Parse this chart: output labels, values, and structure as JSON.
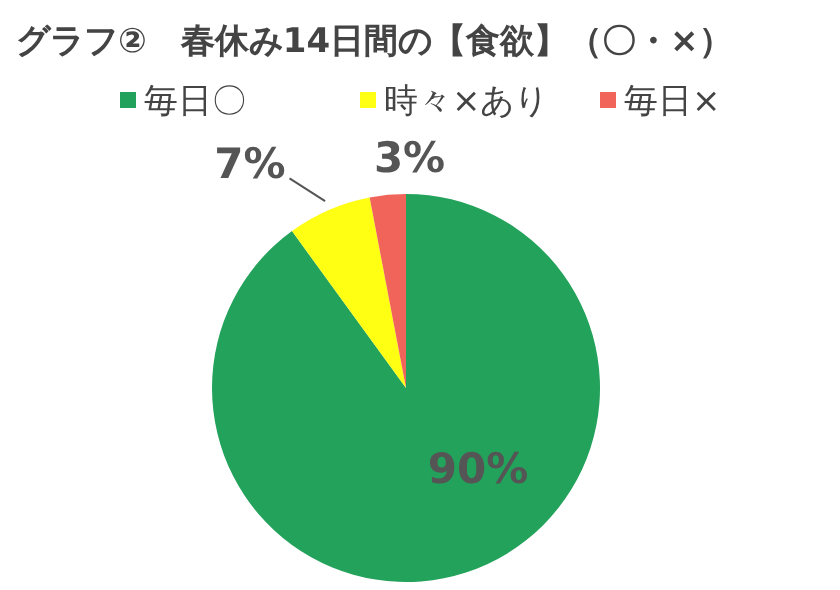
{
  "chart_data": {
    "type": "pie",
    "title": "グラフ②　春休み14日間の【食欲】（〇・×）",
    "categories": [
      "毎日〇",
      "時々×あり",
      "毎日×"
    ],
    "values": [
      90,
      7,
      3
    ],
    "value_labels": [
      "90%",
      "7%",
      "3%"
    ],
    "colors": [
      "#23a25b",
      "#ffff14",
      "#f0645a"
    ],
    "legend": "top"
  }
}
